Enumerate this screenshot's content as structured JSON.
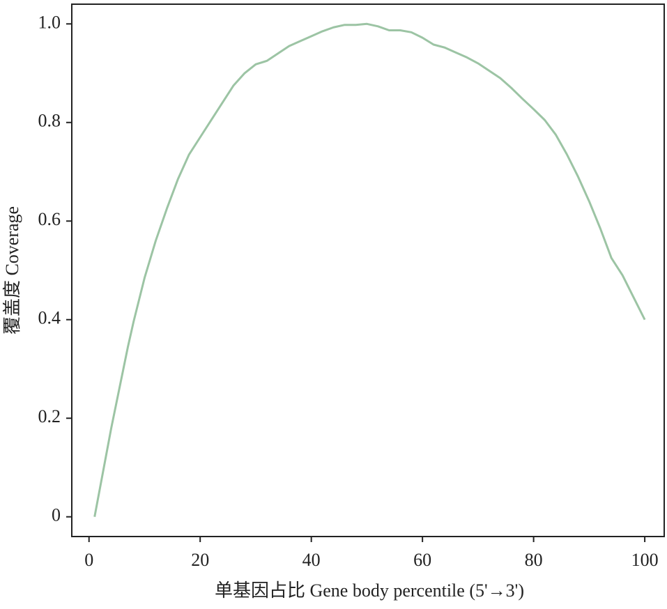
{
  "chart_data": {
    "type": "line",
    "xlabel": "单基因占比 Gene body percentile (5'→3')",
    "ylabel": "覆盖度 Coverage",
    "x": [
      1,
      2,
      3,
      4,
      5,
      6,
      7,
      8,
      9,
      10,
      12,
      14,
      16,
      18,
      20,
      22,
      24,
      26,
      28,
      30,
      32,
      34,
      36,
      38,
      40,
      42,
      44,
      46,
      48,
      50,
      52,
      54,
      56,
      58,
      60,
      62,
      64,
      66,
      68,
      70,
      72,
      74,
      76,
      78,
      80,
      82,
      84,
      86,
      88,
      90,
      92,
      94,
      96,
      98,
      100
    ],
    "series": [
      {
        "color": "#9cc4a4",
        "values": [
          0,
          0.06,
          0.12,
          0.18,
          0.235,
          0.29,
          0.345,
          0.395,
          0.44,
          0.485,
          0.56,
          0.625,
          0.685,
          0.735,
          0.77,
          0.805,
          0.84,
          0.875,
          0.9,
          0.918,
          0.925,
          0.94,
          0.955,
          0.965,
          0.975,
          0.985,
          0.993,
          0.998,
          0.998,
          1.0,
          0.995,
          0.987,
          0.987,
          0.983,
          0.972,
          0.958,
          0.952,
          0.942,
          0.932,
          0.92,
          0.905,
          0.89,
          0.87,
          0.848,
          0.827,
          0.805,
          0.775,
          0.735,
          0.69,
          0.64,
          0.585,
          0.525,
          0.49,
          0.445,
          0.4
        ]
      }
    ],
    "xlim": [
      -3.1,
      103.5
    ],
    "ylim": [
      -0.04,
      1.04
    ],
    "xticks": [
      0,
      20,
      40,
      60,
      80,
      100
    ],
    "yticks": [
      0,
      0.2,
      0.4,
      0.6,
      0.8,
      {
        "value": 1,
        "label": "1.0"
      }
    ]
  }
}
